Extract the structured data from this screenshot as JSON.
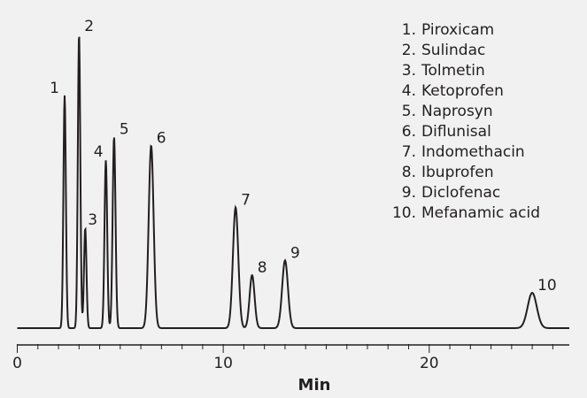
{
  "chart_data": {
    "type": "line",
    "title": "",
    "xlabel": "Min",
    "ylabel": "",
    "xlim": [
      0,
      26.8
    ],
    "ylim": [
      0,
      1
    ],
    "x_ticks": [
      0,
      10,
      20
    ],
    "x_tick_labels": [
      "0",
      "10",
      "20"
    ],
    "grid": false,
    "legend_position": "top-right",
    "line_color": "#231f20",
    "peaks": [
      {
        "label": "1",
        "rt": 2.3,
        "height": 0.79,
        "width": 0.06
      },
      {
        "label": "2",
        "rt": 3.0,
        "height": 1.0,
        "width": 0.06
      },
      {
        "label": "3",
        "rt": 3.3,
        "height": 0.34,
        "width": 0.06
      },
      {
        "label": "4",
        "rt": 4.3,
        "height": 0.57,
        "width": 0.065
      },
      {
        "label": "5",
        "rt": 4.7,
        "height": 0.65,
        "width": 0.07
      },
      {
        "label": "6",
        "rt": 6.5,
        "height": 0.62,
        "width": 0.12
      },
      {
        "label": "7",
        "rt": 10.6,
        "height": 0.41,
        "width": 0.13
      },
      {
        "label": "8",
        "rt": 11.4,
        "height": 0.18,
        "width": 0.12
      },
      {
        "label": "9",
        "rt": 13.0,
        "height": 0.23,
        "width": 0.14
      },
      {
        "label": "10",
        "rt": 25.0,
        "height": 0.12,
        "width": 0.22
      }
    ],
    "legend": [
      "1. Piroxicam",
      "2. Sulindac",
      "3. Tolmetin",
      "4. Ketoprofen",
      "5. Naprosyn",
      "6. Diflunisal",
      "7. Indomethacin",
      "8. Ibuprofen",
      "9. Diclofenac",
      "10. Mefanamic acid"
    ]
  }
}
